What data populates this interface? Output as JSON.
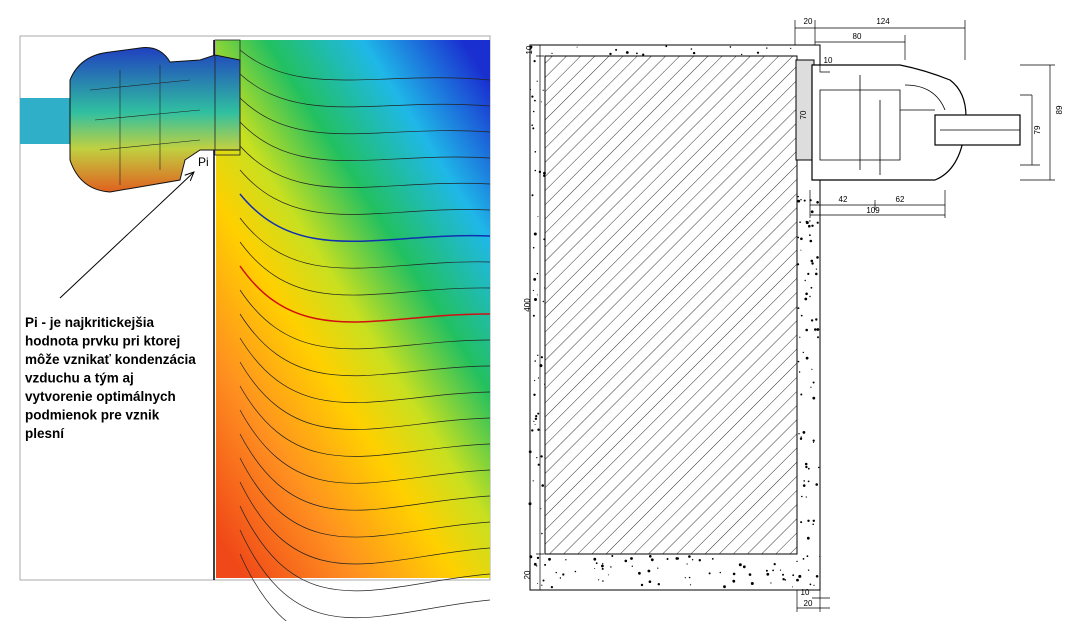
{
  "thermal": {
    "point_label": "Pi",
    "note": [
      "Pi - je najkritickejšia",
      "hodnota prvku pri ktorej",
      "môže vznikať kondenzácia",
      "vzduchu a tým aj",
      "vytvorenie optimálnych",
      "podmienok pre vznik",
      "plesní"
    ]
  },
  "drawing": {
    "dimensions": [
      "10",
      "20",
      "124",
      "80",
      "10",
      "70",
      "89",
      "79",
      "42",
      "62",
      "109",
      "400",
      "20",
      "10",
      "20"
    ]
  }
}
